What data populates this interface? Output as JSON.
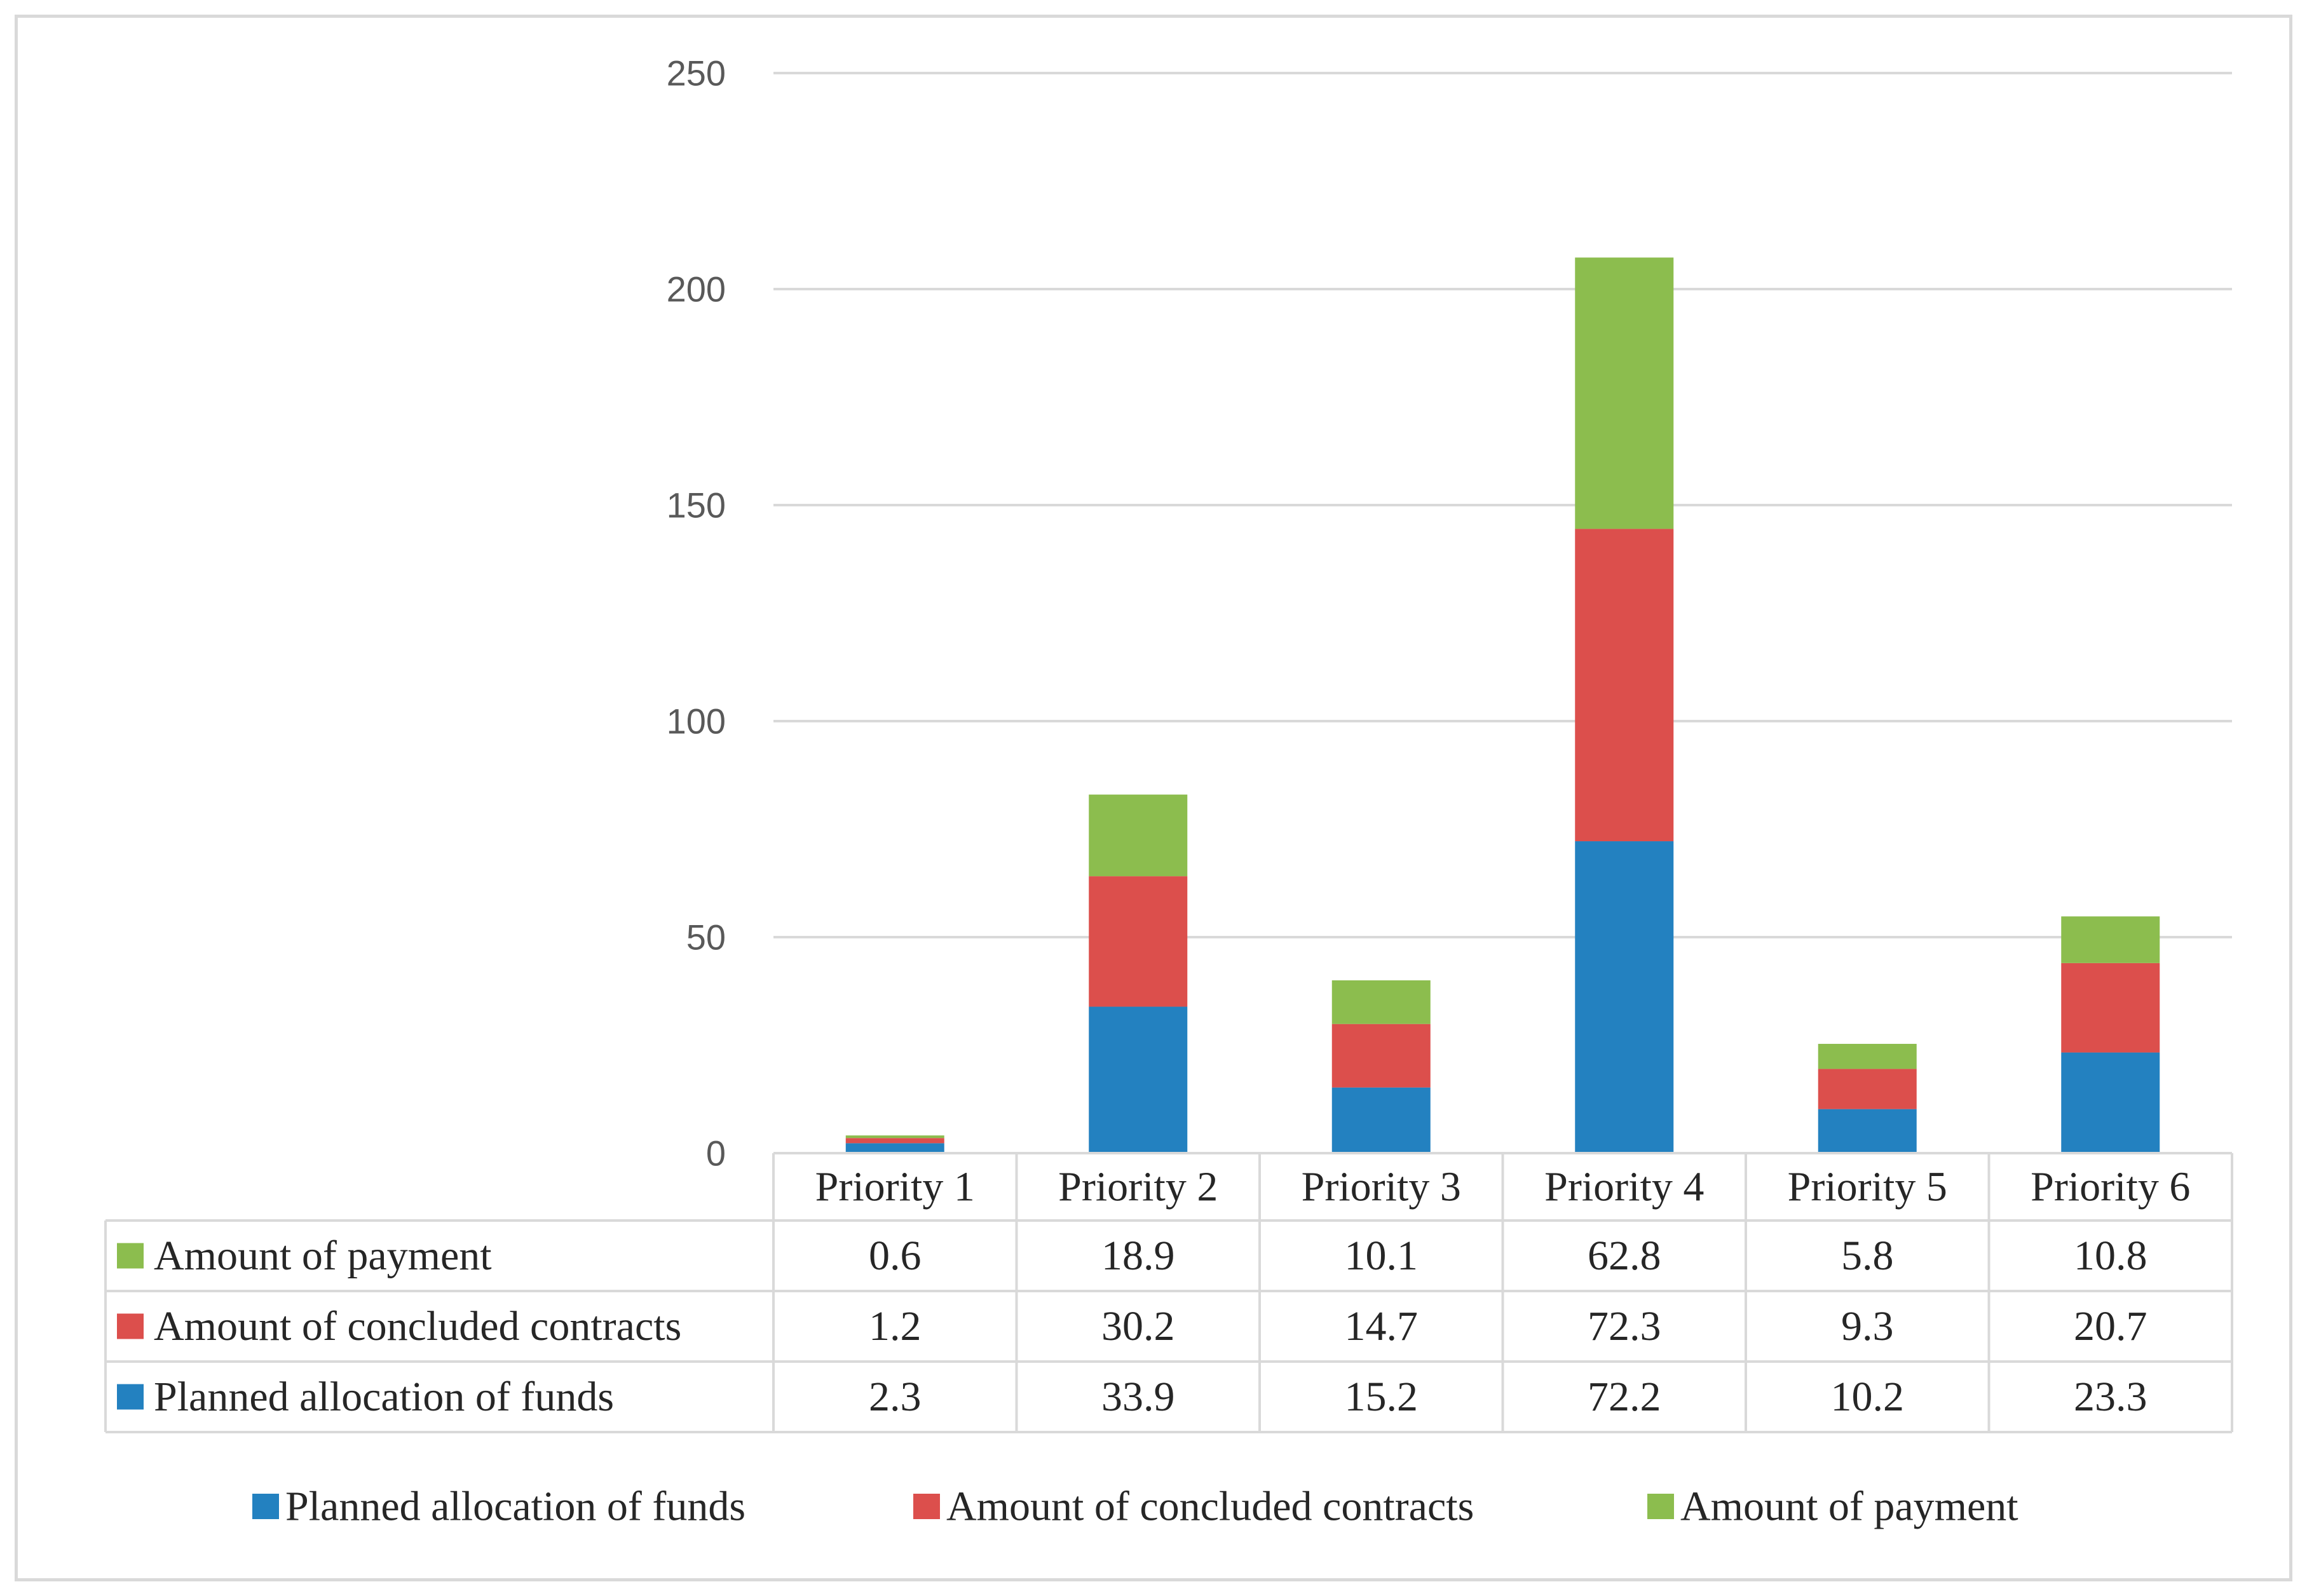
{
  "chart_data": {
    "type": "bar",
    "stacked": true,
    "title": "",
    "xlabel": "",
    "ylabel": "",
    "ylim": [
      0,
      250
    ],
    "yticks": [
      0,
      50,
      100,
      150,
      200,
      250
    ],
    "grid": true,
    "legend_position": "bottom",
    "data_table": true,
    "categories": [
      "Priority 1",
      "Priority 2",
      "Priority 3",
      "Priority 4",
      "Priority 5",
      "Priority 6"
    ],
    "series": [
      {
        "name": "Planned allocation of funds",
        "color": "#2381c0",
        "values": [
          2.3,
          33.9,
          15.2,
          72.2,
          10.2,
          23.3
        ]
      },
      {
        "name": "Amount of concluded contracts",
        "color": "#dc4f4c",
        "values": [
          1.2,
          30.2,
          14.7,
          72.3,
          9.3,
          20.7
        ]
      },
      {
        "name": "Amount of payment",
        "color": "#8cbd4e",
        "values": [
          0.6,
          18.9,
          10.1,
          62.8,
          5.8,
          10.8
        ]
      }
    ]
  }
}
